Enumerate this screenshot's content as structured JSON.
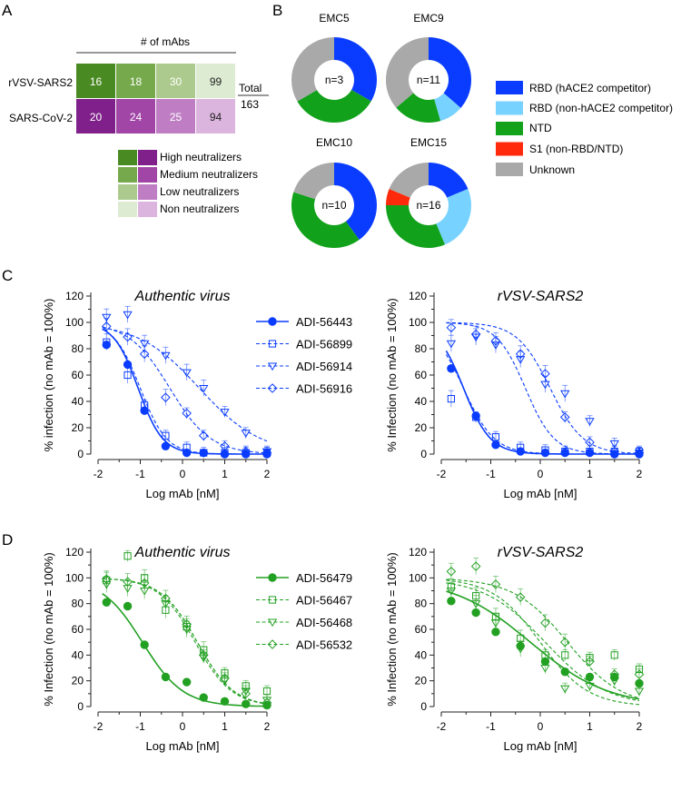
{
  "panels": {
    "a": "A",
    "b": "B",
    "c": "C",
    "d": "D"
  },
  "heatmap": {
    "header": "# of mAbs",
    "rows": [
      {
        "label": "rVSV-SARS2",
        "values": [
          "16",
          "18",
          "30",
          "99"
        ]
      },
      {
        "label": "SARS-CoV-2",
        "values": [
          "20",
          "24",
          "25",
          "94"
        ]
      }
    ],
    "total_label": "Total",
    "total_value": "163",
    "row_colors": [
      [
        "#4a8a22",
        "#76a94b",
        "#acca8e",
        "#dcebd2"
      ],
      [
        "#80208a",
        "#a146a6",
        "#bf7ec4",
        "#dcb5df"
      ]
    ],
    "legend": [
      {
        "label": "High neutralizers",
        "colors": [
          "#4a8a22",
          "#80208a"
        ]
      },
      {
        "label": "Medium neutralizers",
        "colors": [
          "#76a94b",
          "#a146a6"
        ]
      },
      {
        "label": "Low neutralizers",
        "colors": [
          "#acca8e",
          "#bf7ec4"
        ]
      },
      {
        "label": "Non neutralizers",
        "colors": [
          "#dcebd2",
          "#dcb5df"
        ]
      }
    ]
  },
  "donuts": {
    "categories": [
      {
        "label": "RBD (hACE2 competitor)",
        "color": "#0a3cff"
      },
      {
        "label": "RBD (non-hACE2 competitor)",
        "color": "#78d2ff"
      },
      {
        "label": "NTD",
        "color": "#11a11a"
      },
      {
        "label": "S1 (non-RBD/NTD)",
        "color": "#ff2a0c"
      },
      {
        "label": "Unknown",
        "color": "#a9a9a9"
      }
    ],
    "charts": [
      {
        "title": "EMC5",
        "center": "n=3",
        "fractions": [
          0.333,
          0,
          0.333,
          0,
          0.334
        ]
      },
      {
        "title": "EMC9",
        "center": "n=11",
        "fractions": [
          0.364,
          0.091,
          0.182,
          0,
          0.363
        ]
      },
      {
        "title": "EMC10",
        "center": "n=10",
        "fractions": [
          0.4,
          0,
          0.4,
          0,
          0.2
        ]
      },
      {
        "title": "EMC15",
        "center": "n=16",
        "fractions": [
          0.1875,
          0.25,
          0.3125,
          0.0625,
          0.1875
        ]
      }
    ]
  },
  "chart_data": [
    {
      "type": "line",
      "title": "Authentic virus",
      "xlabel": "Log mAb [nM]",
      "ylabel": "% infection (no mAb = 100%)",
      "xlim": [
        -2,
        2
      ],
      "ylim": [
        0,
        120
      ],
      "xticks": [
        "-2",
        "-1",
        "0",
        "1",
        "2"
      ],
      "yticks": [
        "0",
        "20",
        "40",
        "60",
        "80",
        "100",
        "120"
      ],
      "color": "#0a3cff",
      "legend_position": "top-right",
      "x": [
        -1.8,
        -1.3,
        -0.9,
        -0.4,
        0.1,
        0.5,
        1.0,
        1.5,
        2.0
      ],
      "series": [
        {
          "name": "ADI-56443",
          "marker": "circle",
          "filled": true,
          "logIC50": -1.05,
          "hill": 1.5,
          "values": [
            83,
            68,
            33,
            6,
            1,
            1,
            0,
            0,
            0
          ]
        },
        {
          "name": "ADI-56899",
          "marker": "square",
          "filled": false,
          "logIC50": -1.0,
          "hill": 1.4,
          "values": [
            85,
            60,
            37,
            14,
            5,
            1,
            1,
            1,
            1
          ]
        },
        {
          "name": "ADI-56914",
          "marker": "triangle-down",
          "filled": false,
          "logIC50": 0.4,
          "hill": 0.6,
          "values": [
            104,
            106,
            84,
            75,
            62,
            50,
            32,
            16,
            2
          ]
        },
        {
          "name": "ADI-56916",
          "marker": "diamond",
          "filled": false,
          "logIC50": -0.3,
          "hill": 0.9,
          "values": [
            97,
            89,
            76,
            43,
            31,
            14,
            6,
            2,
            1
          ]
        }
      ]
    },
    {
      "type": "line",
      "title": "rVSV-SARS2",
      "xlabel": "Log mAb [nM]",
      "ylabel": "% Infection (no mAb = 100%)",
      "xlim": [
        -2,
        2
      ],
      "ylim": [
        0,
        120
      ],
      "xticks": [
        "-2",
        "-1",
        "0",
        "1",
        "2"
      ],
      "yticks": [
        "0",
        "20",
        "40",
        "60",
        "80",
        "100",
        "120"
      ],
      "color": "#0a3cff",
      "x": [
        -1.8,
        -1.3,
        -0.9,
        -0.4,
        0.1,
        0.5,
        1.0,
        1.5,
        2.0
      ],
      "series": [
        {
          "name": "ADI-56443",
          "marker": "circle",
          "filled": true,
          "logIC50": -1.55,
          "hill": 1.6,
          "values": [
            65,
            29,
            7,
            2,
            1,
            1,
            1,
            0,
            0
          ]
        },
        {
          "name": "ADI-56899",
          "marker": "square",
          "filled": false,
          "logIC50": -1.55,
          "hill": 1.4,
          "values": [
            42,
            28,
            13,
            5,
            3,
            2,
            2,
            2,
            2
          ]
        },
        {
          "name": "ADI-56914",
          "marker": "triangle-down",
          "filled": false,
          "logIC50": 0.2,
          "hill": 1.3,
          "values": [
            84,
            89,
            83,
            72,
            53,
            46,
            25,
            8,
            1
          ]
        },
        {
          "name": "ADI-56916",
          "marker": "diamond",
          "filled": false,
          "logIC50": -0.3,
          "hill": 1.5,
          "values": [
            96,
            91,
            86,
            76,
            61,
            28,
            9,
            2,
            1
          ]
        }
      ]
    },
    {
      "type": "line",
      "title": "Authentic virus",
      "xlabel": "Log mAb [nM]",
      "ylabel": "% Infection (no mAb = 100%)",
      "xlim": [
        -2,
        2
      ],
      "ylim": [
        0,
        120
      ],
      "xticks": [
        "-2",
        "-1",
        "0",
        "1",
        "2"
      ],
      "yticks": [
        "0",
        "20",
        "40",
        "60",
        "80",
        "100",
        "120"
      ],
      "color": "#22a022",
      "legend_position": "top-right",
      "x": [
        -1.8,
        -1.3,
        -0.9,
        -0.4,
        0.1,
        0.5,
        1.0,
        1.5,
        2.0
      ],
      "series": [
        {
          "name": "ADI-56479",
          "marker": "circle",
          "filled": true,
          "logIC50": -0.95,
          "hill": 0.9,
          "values": [
            81,
            78,
            48,
            23,
            19,
            7,
            4,
            2,
            1
          ]
        },
        {
          "name": "ADI-56467",
          "marker": "square",
          "filled": false,
          "logIC50": 0.35,
          "hill": 1.0,
          "values": [
            98,
            117,
            100,
            75,
            62,
            44,
            26,
            16,
            12
          ]
        },
        {
          "name": "ADI-56468",
          "marker": "triangle-down",
          "filled": false,
          "logIC50": 0.3,
          "hill": 1.0,
          "values": [
            95,
            92,
            90,
            80,
            60,
            38,
            20,
            12,
            5
          ]
        },
        {
          "name": "ADI-56532",
          "marker": "diamond",
          "filled": false,
          "logIC50": 0.35,
          "hill": 1.0,
          "values": [
            99,
            97,
            96,
            84,
            64,
            40,
            22,
            10,
            3
          ]
        }
      ]
    },
    {
      "type": "line",
      "title": "rVSV-SARS2",
      "xlabel": "Log mAb [nM]",
      "ylabel": "% Infection (no mAb = 100%)",
      "xlim": [
        -2,
        2
      ],
      "ylim": [
        0,
        120
      ],
      "xticks": [
        "-2",
        "-1",
        "0",
        "1",
        "2"
      ],
      "yticks": [
        "0",
        "20",
        "40",
        "60",
        "80",
        "100",
        "120"
      ],
      "color": "#22a022",
      "x": [
        -1.8,
        -1.3,
        -0.9,
        -0.4,
        0.1,
        0.5,
        1.0,
        1.5,
        2.0
      ],
      "series": [
        {
          "name": "ADI-56479",
          "marker": "circle",
          "filled": true,
          "logIC50": -0.2,
          "hill": 0.55,
          "values": [
            82,
            73,
            58,
            47,
            35,
            27,
            23,
            23,
            18
          ]
        },
        {
          "name": "ADI-56467",
          "marker": "square",
          "filled": false,
          "logIC50": 0.1,
          "hill": 0.7,
          "values": [
            93,
            86,
            70,
            53,
            40,
            40,
            38,
            40,
            29
          ]
        },
        {
          "name": "ADI-56468",
          "marker": "triangle-down",
          "filled": false,
          "logIC50": 0.0,
          "hill": 0.9,
          "values": [
            90,
            80,
            65,
            45,
            30,
            14,
            16,
            20,
            12
          ]
        },
        {
          "name": "ADI-56532",
          "marker": "diamond",
          "filled": false,
          "logIC50": 0.55,
          "hill": 0.8,
          "values": [
            105,
            109,
            95,
            85,
            65,
            50,
            35,
            25,
            25
          ]
        }
      ]
    }
  ]
}
